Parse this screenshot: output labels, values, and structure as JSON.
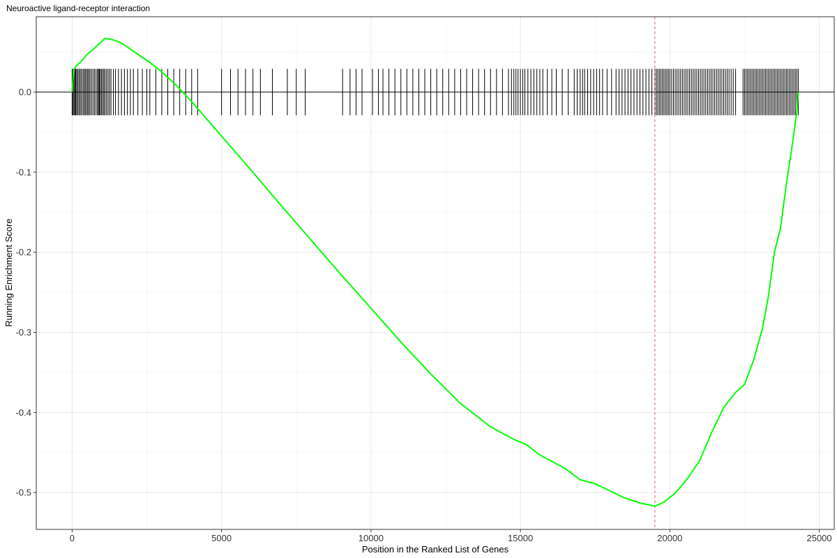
{
  "chart_data": {
    "type": "line",
    "title": "Neuroactive ligand-receptor interaction",
    "xlabel": "Position in the Ranked List of Genes",
    "ylabel": "Running Enrichment Score",
    "xlim": [
      -1200,
      25500
    ],
    "ylim": [
      -0.546,
      0.094
    ],
    "x_ticks": [
      0,
      5000,
      10000,
      15000,
      20000,
      25000
    ],
    "y_ticks": [
      0.0,
      -0.1,
      -0.2,
      -0.3,
      -0.4,
      -0.5
    ],
    "grid": true,
    "legend": "none",
    "colors": {
      "line": "#00ff00",
      "marker": "#e06666",
      "hits": "#000000",
      "zero": "#000000"
    },
    "series": [
      {
        "x": [
          0,
          50,
          150,
          300,
          500,
          700,
          900,
          1100,
          1300,
          1600,
          1900,
          2200,
          2600,
          3000,
          3500,
          4000,
          5000,
          6000,
          7000,
          8000,
          9000,
          10000,
          11000,
          12000,
          13000,
          14000,
          14800,
          15200,
          15600,
          16000,
          16500,
          17000,
          17500,
          18000,
          18500,
          19000,
          19500,
          19800,
          20200,
          20600,
          21000,
          21400,
          21800,
          22200,
          22500,
          22800,
          23100,
          23300,
          23500,
          23700,
          23900,
          24100,
          24250,
          24300
        ],
        "values": [
          0.0,
          0.028,
          0.033,
          0.038,
          0.047,
          0.053,
          0.06,
          0.067,
          0.066,
          0.062,
          0.055,
          0.047,
          0.037,
          0.025,
          0.008,
          -0.012,
          -0.055,
          -0.098,
          -0.142,
          -0.185,
          -0.228,
          -0.27,
          -0.312,
          -0.352,
          -0.389,
          -0.418,
          -0.434,
          -0.44,
          -0.452,
          -0.46,
          -0.47,
          -0.484,
          -0.489,
          -0.498,
          -0.507,
          -0.513,
          -0.517,
          -0.512,
          -0.5,
          -0.482,
          -0.46,
          -0.425,
          -0.394,
          -0.375,
          -0.365,
          -0.335,
          -0.295,
          -0.255,
          -0.2,
          -0.17,
          -0.115,
          -0.065,
          -0.025,
          0.0
        ]
      }
    ],
    "max_deviation_x": 19500,
    "hit_positions": [
      0,
      30,
      60,
      90,
      120,
      150,
      190,
      230,
      270,
      310,
      360,
      400,
      440,
      480,
      520,
      560,
      600,
      650,
      700,
      750,
      800,
      850,
      880,
      910,
      940,
      980,
      1020,
      1060,
      1100,
      1150,
      1200,
      1250,
      1300,
      1380,
      1450,
      1550,
      1650,
      1750,
      1850,
      1950,
      2050,
      2200,
      2350,
      2500,
      2600,
      2800,
      3000,
      3200,
      3400,
      3600,
      3800,
      4000,
      4200,
      5000,
      5300,
      5550,
      5800,
      6050,
      6300,
      6700,
      7200,
      7500,
      7800,
      9050,
      9300,
      9500,
      9700,
      10050,
      10250,
      10400,
      10600,
      10800,
      11000,
      11200,
      11400,
      11600,
      11800,
      12000,
      12200,
      12400,
      12600,
      12800,
      13000,
      13200,
      13400,
      13600,
      13800,
      14000,
      14200,
      14400,
      14600,
      14700,
      14780,
      14850,
      14920,
      15000,
      15080,
      15150,
      15250,
      15350,
      15450,
      15550,
      15650,
      15750,
      15900,
      16050,
      16200,
      16400,
      16600,
      16800,
      16900,
      17000,
      17080,
      17150,
      17250,
      17350,
      17450,
      17550,
      17650,
      17750,
      17900,
      18050,
      18200,
      18300,
      18400,
      18500,
      18600,
      18700,
      18800,
      18900,
      19000,
      19100,
      19200,
      19300,
      19400,
      19500,
      19550,
      19600,
      19650,
      19700,
      19750,
      19800,
      19850,
      19900,
      19950,
      20000,
      20060,
      20120,
      20180,
      20240,
      20300,
      20360,
      20420,
      20480,
      20540,
      20600,
      20660,
      20720,
      20780,
      20840,
      20900,
      20960,
      21020,
      21080,
      21140,
      21200,
      21260,
      21320,
      21380,
      21440,
      21500,
      21560,
      21620,
      21680,
      21740,
      21800,
      21860,
      21920,
      21980,
      22050,
      22120,
      22200,
      22450,
      22500,
      22550,
      22600,
      22650,
      22700,
      22750,
      22800,
      22850,
      22900,
      22950,
      23000,
      23050,
      23100,
      23150,
      23200,
      23250,
      23300,
      23350,
      23400,
      23450,
      23500,
      23550,
      23600,
      23650,
      23700,
      23750,
      23800,
      23850,
      23900,
      23950,
      24000,
      24050,
      24100,
      24150,
      24200,
      24250,
      24300
    ]
  }
}
